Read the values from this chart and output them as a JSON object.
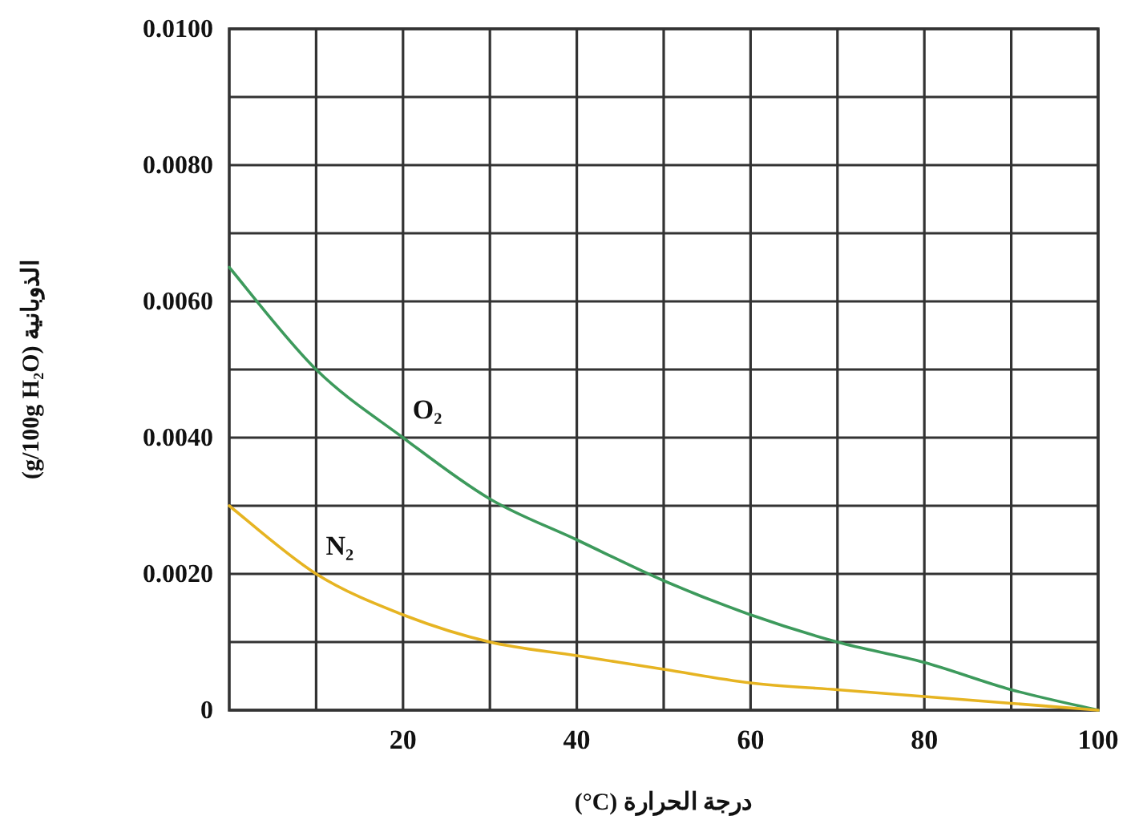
{
  "chart_data": {
    "type": "line",
    "xlabel": "درجة الحرارة (°C)",
    "ylabel": "الذوبانية (g/100g H₂O)",
    "x": [
      0,
      10,
      20,
      30,
      40,
      50,
      60,
      70,
      80,
      90,
      100
    ],
    "series": [
      {
        "name": "O₂",
        "color": "#3d9a5c",
        "values": [
          0.0065,
          0.005,
          0.004,
          0.0031,
          0.0025,
          0.0019,
          0.0014,
          0.001,
          0.0007,
          0.0003,
          0
        ]
      },
      {
        "name": "N₂",
        "color": "#e6b422",
        "values": [
          0.003,
          0.002,
          0.0014,
          0.001,
          0.0008,
          0.0006,
          0.0004,
          0.0003,
          0.0002,
          0.0001,
          0
        ]
      }
    ],
    "xlim": [
      0,
      100
    ],
    "xticks": [
      {
        "value": 10,
        "label": null
      },
      20,
      {
        "value": 30,
        "label": null
      },
      40,
      {
        "value": 50,
        "label": null
      },
      60,
      {
        "value": 70,
        "label": null
      },
      80,
      {
        "value": 90,
        "label": null
      },
      100
    ],
    "ylim": [
      0,
      0.01
    ],
    "yticks": [
      0,
      {
        "value": 0.001,
        "label": null
      },
      {
        "value": 0.002,
        "label": "0.0020"
      },
      {
        "value": 0.003,
        "label": null
      },
      {
        "value": 0.004,
        "label": "0.0040"
      },
      {
        "value": 0.005,
        "label": null
      },
      {
        "value": 0.006,
        "label": "0.0060"
      },
      {
        "value": 0.007,
        "label": null
      },
      {
        "value": 0.008,
        "label": "0.0080"
      },
      {
        "value": 0.009,
        "label": null
      },
      {
        "value": 0.01,
        "label": "0.0100"
      }
    ],
    "grid": true,
    "marker": "none",
    "line_style": "solid"
  }
}
